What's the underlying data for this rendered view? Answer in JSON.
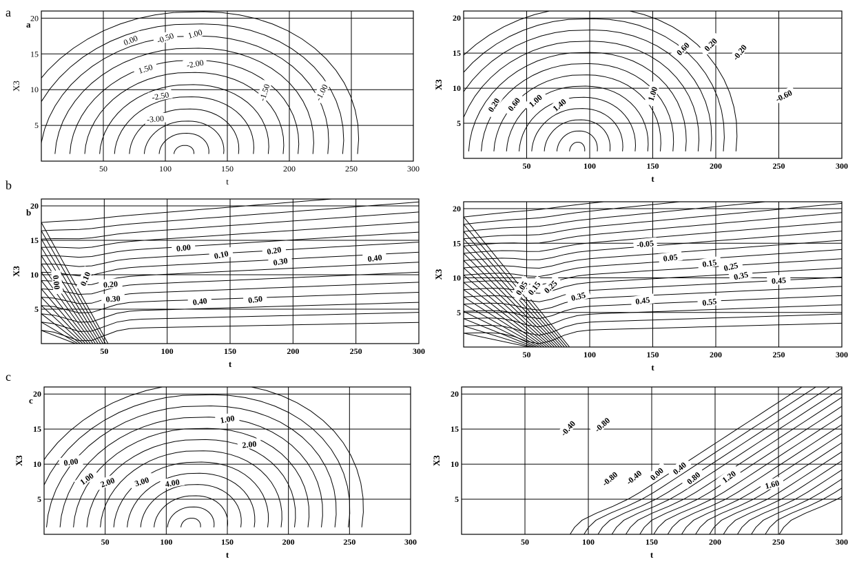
{
  "row_labels": [
    "a",
    "b",
    "c"
  ],
  "chart_data": [
    {
      "type": "contour",
      "panel_label": "a",
      "xlabel": "t",
      "ylabel": "X3",
      "xlim": [
        0,
        300
      ],
      "ylim": [
        0,
        21
      ],
      "xticks": [
        "50",
        "100",
        "150",
        "200",
        "250",
        "300"
      ],
      "yticks": [
        "5",
        "10",
        "15",
        "20"
      ],
      "grid": true,
      "contour_labels": [
        {
          "text": "0.00",
          "x": 72,
          "y": 16.9,
          "rot": -22
        },
        {
          "text": "-0.50",
          "x": 100,
          "y": 17.2,
          "rot": -20
        },
        {
          "text": "1.00",
          "x": 124,
          "y": 17.8,
          "rot": -16
        },
        {
          "text": "1.50",
          "x": 84,
          "y": 12.9,
          "rot": -18
        },
        {
          "text": "-2.00",
          "x": 124,
          "y": 13.6,
          "rot": -10
        },
        {
          "text": "-2.50",
          "x": 96,
          "y": 9.1,
          "rot": -10
        },
        {
          "text": "-3.00",
          "x": 92,
          "y": 5.9,
          "rot": -4
        },
        {
          "text": "-1.50",
          "x": 180,
          "y": 9.6,
          "rot": -72
        },
        {
          "text": "-1.00",
          "x": 226,
          "y": 9.6,
          "rot": -62
        }
      ]
    },
    {
      "type": "contour",
      "panel_label": "",
      "xlabel": "t",
      "ylabel": "X3",
      "xlim": [
        0,
        300
      ],
      "ylim": [
        0,
        21
      ],
      "xticks": [
        "50",
        "100",
        "150",
        "200",
        "250",
        "300"
      ],
      "yticks": [
        "5",
        "10",
        "15",
        "20"
      ],
      "grid": true,
      "contour_labels": [
        {
          "text": "0.20",
          "x": 24,
          "y": 7.6,
          "rot": -58
        },
        {
          "text": "0.60",
          "x": 40,
          "y": 7.7,
          "rot": -52
        },
        {
          "text": "1.00",
          "x": 57,
          "y": 8.2,
          "rot": -42
        },
        {
          "text": "1.40",
          "x": 76,
          "y": 7.6,
          "rot": -40
        },
        {
          "text": "1.00",
          "x": 150,
          "y": 9.2,
          "rot": -72
        },
        {
          "text": "0.60",
          "x": 174,
          "y": 15.6,
          "rot": -46
        },
        {
          "text": "0.20",
          "x": 196,
          "y": 16.2,
          "rot": -46
        },
        {
          "text": "-0.20",
          "x": 219,
          "y": 15.1,
          "rot": -52
        },
        {
          "text": "-0.60",
          "x": 254,
          "y": 8.9,
          "rot": -26
        }
      ]
    },
    {
      "type": "contour",
      "panel_label": "b",
      "xlabel": "t",
      "ylabel": "X3",
      "xlim": [
        0,
        300
      ],
      "ylim": [
        0,
        21
      ],
      "xticks": [
        "50",
        "100",
        "150",
        "200",
        "250",
        "300"
      ],
      "yticks": [
        "5",
        "10",
        "15",
        "20"
      ],
      "grid": true,
      "contour_labels": [
        {
          "text": "0.00",
          "x": 113,
          "y": 13.9,
          "rot": -6
        },
        {
          "text": "0.10",
          "x": 143,
          "y": 12.9,
          "rot": -12
        },
        {
          "text": "0.20",
          "x": 185,
          "y": 13.5,
          "rot": -10
        },
        {
          "text": "0.30",
          "x": 190,
          "y": 11.9,
          "rot": -10
        },
        {
          "text": "0.40",
          "x": 265,
          "y": 12.4,
          "rot": -8
        },
        {
          "text": "0.00",
          "x": 12,
          "y": 8.9,
          "rot": 84
        },
        {
          "text": "0.10",
          "x": 35,
          "y": 9.4,
          "rot": -68
        },
        {
          "text": "0.20",
          "x": 55,
          "y": 8.6,
          "rot": -4
        },
        {
          "text": "0.30",
          "x": 57,
          "y": 6.5,
          "rot": -4
        },
        {
          "text": "0.40",
          "x": 126,
          "y": 6.1,
          "rot": -8
        },
        {
          "text": "0.50",
          "x": 170,
          "y": 6.4,
          "rot": -8
        }
      ]
    },
    {
      "type": "contour",
      "panel_label": "",
      "xlabel": "t",
      "ylabel": "X3",
      "xlim": [
        0,
        300
      ],
      "ylim": [
        0,
        21
      ],
      "xticks": [
        "50",
        "100",
        "150",
        "200",
        "250",
        "300"
      ],
      "yticks": [
        "5",
        "10",
        "15",
        "20"
      ],
      "grid": true,
      "contour_labels": [
        {
          "text": "-0.05",
          "x": 144,
          "y": 14.9,
          "rot": -6
        },
        {
          "text": "0.05",
          "x": 164,
          "y": 12.9,
          "rot": -8
        },
        {
          "text": "0.15",
          "x": 195,
          "y": 12.1,
          "rot": -10
        },
        {
          "text": "0.25",
          "x": 212,
          "y": 11.6,
          "rot": -14
        },
        {
          "text": "0.35",
          "x": 220,
          "y": 10.3,
          "rot": -12
        },
        {
          "text": "0.45",
          "x": 250,
          "y": 9.6,
          "rot": -4
        },
        {
          "text": "0.05",
          "x": 46,
          "y": 8.5,
          "rot": -58
        },
        {
          "text": "0.15",
          "x": 56,
          "y": 8.5,
          "rot": -52
        },
        {
          "text": "0.25",
          "x": 69,
          "y": 8.7,
          "rot": -44
        },
        {
          "text": "0.35",
          "x": 91,
          "y": 7.3,
          "rot": -14
        },
        {
          "text": "0.45",
          "x": 142,
          "y": 6.7,
          "rot": -8
        },
        {
          "text": "0.55",
          "x": 195,
          "y": 6.5,
          "rot": -8
        }
      ]
    },
    {
      "type": "contour",
      "panel_label": "c",
      "xlabel": "t",
      "ylabel": "X3",
      "xlim": [
        0,
        300
      ],
      "ylim": [
        0,
        21
      ],
      "xticks": [
        "50",
        "100",
        "150",
        "200",
        "250",
        "300"
      ],
      "yticks": [
        "5",
        "10",
        "15",
        "20"
      ],
      "grid": true,
      "contour_labels": [
        {
          "text": "0.00",
          "x": 22,
          "y": 10.3,
          "rot": -8
        },
        {
          "text": "1.00",
          "x": 150,
          "y": 16.4,
          "rot": -10
        },
        {
          "text": "2.00",
          "x": 168,
          "y": 12.8,
          "rot": -6
        },
        {
          "text": "1.00",
          "x": 35,
          "y": 7.9,
          "rot": -36
        },
        {
          "text": "2.00",
          "x": 52,
          "y": 7.4,
          "rot": -20
        },
        {
          "text": "3.00",
          "x": 80,
          "y": 7.5,
          "rot": -18
        },
        {
          "text": "4.00",
          "x": 105,
          "y": 7.3,
          "rot": -10
        }
      ]
    },
    {
      "type": "contour",
      "panel_label": "",
      "xlabel": "t",
      "ylabel": "X3",
      "xlim": [
        0,
        300
      ],
      "ylim": [
        0,
        21
      ],
      "xticks": [
        "50",
        "100",
        "150",
        "200",
        "250",
        "300"
      ],
      "yticks": [
        "5",
        "10",
        "15",
        "20"
      ],
      "grid": true,
      "contour_labels": [
        {
          "text": "-0.40",
          "x": 84,
          "y": 15.1,
          "rot": -48
        },
        {
          "text": "-0.80",
          "x": 111,
          "y": 15.6,
          "rot": -42
        },
        {
          "text": "-0.80",
          "x": 117,
          "y": 7.9,
          "rot": -40
        },
        {
          "text": "-0.40",
          "x": 136,
          "y": 8.1,
          "rot": -40
        },
        {
          "text": "0.00",
          "x": 154,
          "y": 8.6,
          "rot": -42
        },
        {
          "text": "0.40",
          "x": 172,
          "y": 9.4,
          "rot": -40
        },
        {
          "text": "0.80",
          "x": 183,
          "y": 8.0,
          "rot": -40
        },
        {
          "text": "1.20",
          "x": 211,
          "y": 8.2,
          "rot": -36
        },
        {
          "text": "1.60",
          "x": 245,
          "y": 7.1,
          "rot": -14
        }
      ]
    }
  ]
}
